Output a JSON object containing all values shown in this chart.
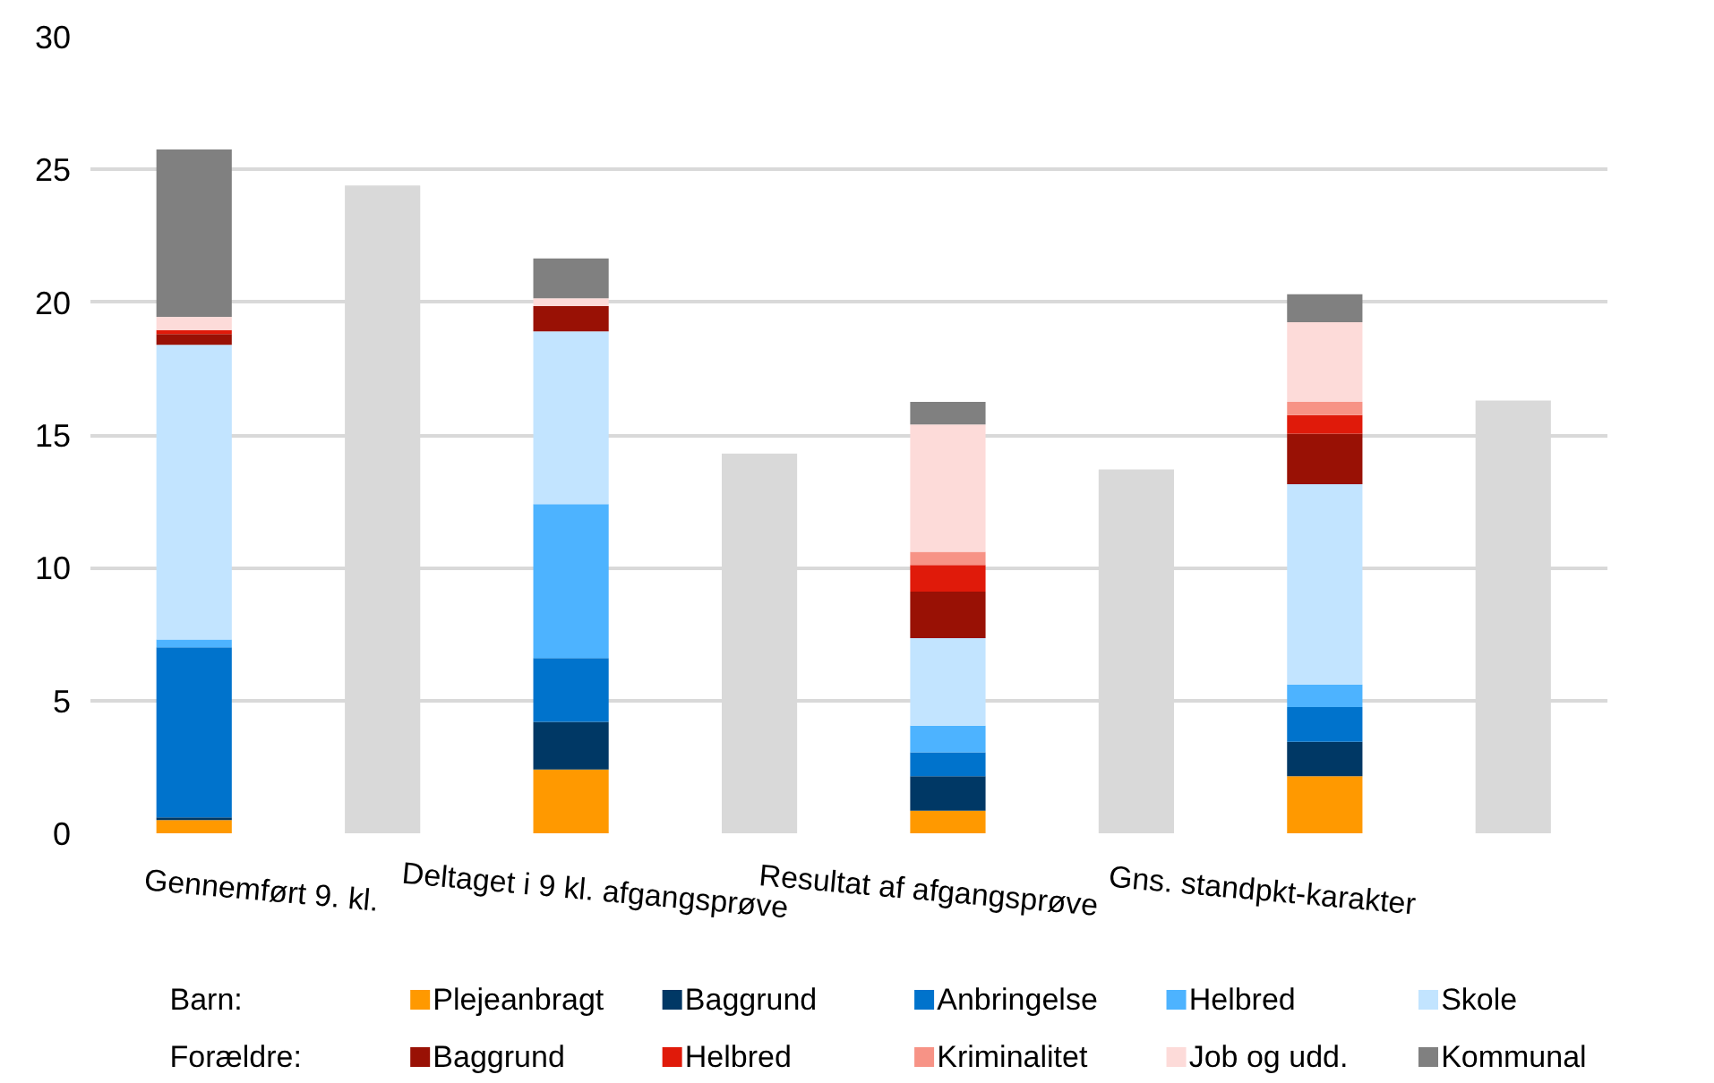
{
  "chart_data": {
    "type": "bar",
    "stacked": true,
    "categories": [
      "Gennemført 9. kl.",
      null,
      "Deltaget i 9 kl. afgangsprøve",
      null,
      "Resultat af afgangsprøve",
      null,
      "Gns. standpkt-karakter",
      null
    ],
    "series": [
      {
        "name": "Plejeanbragt",
        "color": "#ff9900",
        "values": [
          0.5,
          null,
          2.4,
          null,
          0.85,
          null,
          2.15,
          null
        ]
      },
      {
        "name": "Baggrund",
        "color": "#003865",
        "values": [
          0.1,
          null,
          1.8,
          null,
          1.3,
          null,
          1.3,
          null
        ]
      },
      {
        "name": "Anbringelse",
        "color": "#0073cc",
        "values": [
          6.4,
          null,
          2.4,
          null,
          0.9,
          null,
          1.3,
          null
        ]
      },
      {
        "name": "Helbred",
        "color": "#4db3ff",
        "values": [
          0.3,
          null,
          5.8,
          null,
          1.0,
          null,
          0.85,
          null
        ]
      },
      {
        "name": "Skole",
        "color": "#c2e4ff",
        "values": [
          11.1,
          null,
          6.5,
          null,
          3.3,
          null,
          7.55,
          null
        ]
      },
      {
        "name": "Baggrund",
        "color": "#991105",
        "values": [
          0.4,
          null,
          0.95,
          null,
          1.75,
          null,
          1.9,
          null
        ]
      },
      {
        "name": "Helbred",
        "color": "#e01a0a",
        "values": [
          0.15,
          null,
          0.0,
          null,
          1.0,
          null,
          0.7,
          null
        ]
      },
      {
        "name": "Kriminalitet",
        "color": "#f79386",
        "values": [
          0.0,
          null,
          0.0,
          null,
          0.5,
          null,
          0.5,
          null
        ]
      },
      {
        "name": "Job og udd.",
        "color": "#fddbd9",
        "values": [
          0.5,
          null,
          0.3,
          null,
          4.8,
          null,
          3.0,
          null
        ]
      },
      {
        "name": "Kommunal",
        "color": "#808080",
        "values": [
          6.3,
          null,
          1.5,
          null,
          0.85,
          null,
          1.05,
          null
        ]
      },
      {
        "color": "#d9d9d9",
        "values": [
          null,
          24.4,
          null,
          14.3,
          null,
          13.7,
          null,
          16.3
        ]
      }
    ],
    "ylim": [
      0,
      30
    ],
    "yticks": [
      0,
      5,
      10,
      15,
      20,
      25,
      30
    ],
    "grid": "y",
    "legend": "bottom",
    "annotations": [
      "Barn:",
      "Forældre:"
    ]
  }
}
